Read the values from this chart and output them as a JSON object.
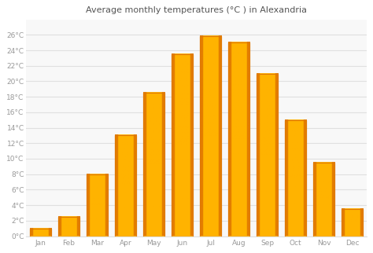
{
  "title": "Average monthly temperatures (°C ) in Alexandria",
  "months": [
    "Jan",
    "Feb",
    "Mar",
    "Apr",
    "May",
    "Jun",
    "Jul",
    "Aug",
    "Sep",
    "Oct",
    "Nov",
    "Dec"
  ],
  "values": [
    1,
    2.5,
    8,
    13,
    18.5,
    23.5,
    25.8,
    25,
    21,
    15,
    9.5,
    3.5
  ],
  "bar_color_center": "#FFB300",
  "bar_color_edge": "#E07800",
  "ylim": [
    0,
    28
  ],
  "yticks": [
    0,
    2,
    4,
    6,
    8,
    10,
    12,
    14,
    16,
    18,
    20,
    22,
    24,
    26
  ],
  "ytick_labels": [
    "0°C",
    "2°C",
    "4°C",
    "6°C",
    "8°C",
    "10°C",
    "12°C",
    "14°C",
    "16°C",
    "18°C",
    "20°C",
    "22°C",
    "24°C",
    "26°C"
  ],
  "background_color": "#ffffff",
  "plot_bg_color": "#f8f8f8",
  "grid_color": "#e0e0e0",
  "title_fontsize": 8,
  "tick_fontsize": 6.5,
  "title_color": "#555555",
  "tick_color": "#999999",
  "bar_width": 0.75
}
